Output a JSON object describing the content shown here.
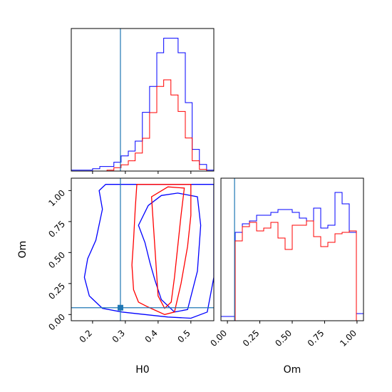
{
  "chart_data": {
    "type": "corner",
    "colors": {
      "series_a": "#0000ff",
      "series_b": "#ff0000",
      "truth": "#1f77b4"
    },
    "truth": {
      "H0": 0.285,
      "Om": 0.055
    },
    "panels": [
      {
        "id": "H0-histogram",
        "type": "step-histogram",
        "xlim": [
          0.135,
          0.57
        ],
        "ylim": [
          0,
          50
        ],
        "bin_edges": [
          0.135,
          0.157,
          0.178,
          0.2,
          0.222,
          0.244,
          0.265,
          0.287,
          0.309,
          0.33,
          0.352,
          0.374,
          0.396,
          0.417,
          0.439,
          0.461,
          0.483,
          0.504,
          0.526,
          0.548,
          0.57
        ],
        "series": [
          {
            "color_key": "series_a",
            "values": [
              0.3,
              0.3,
              0.3,
              0.8,
              1.6,
              1.6,
              3.1,
              5.3,
              7.0,
              10.5,
              20.6,
              29.7,
              41.5,
              46.6,
              46.6,
              41.5,
              24.0,
              7.6,
              2.3,
              0.3
            ]
          },
          {
            "color_key": "series_b",
            "values": [
              0,
              0,
              0,
              0,
              0,
              0.3,
              1.2,
              2.2,
              3.6,
              6.3,
              11.5,
              20.5,
              29.7,
              32.0,
              26.7,
              20.9,
              11.6,
              3.6,
              0.6,
              0
            ]
          }
        ],
        "x_ticks": [
          0.2,
          0.3,
          0.4,
          0.5
        ]
      },
      {
        "id": "Om-histogram",
        "type": "step-histogram",
        "xlim": [
          -0.05,
          1.05
        ],
        "ylim": [
          0,
          100
        ],
        "bin_edges": [
          -0.05,
          0.005,
          0.06,
          0.115,
          0.17,
          0.225,
          0.28,
          0.335,
          0.39,
          0.445,
          0.5,
          0.555,
          0.61,
          0.665,
          0.72,
          0.775,
          0.83,
          0.885,
          0.94,
          0.995,
          1.05
        ],
        "series": [
          {
            "color_key": "series_a",
            "values": [
              3,
              3,
              62,
              68,
              70,
              74,
              74,
              76,
              78,
              78,
              76,
              72,
              70,
              79,
              65,
              67,
              90,
              82,
              62,
              5
            ]
          },
          {
            "color_key": "series_b",
            "values": [
              0,
              0,
              56,
              66,
              69,
              63,
              65,
              69,
              58,
              50,
              67,
              67,
              70,
              59,
              52,
              55,
              61,
              62,
              63,
              0
            ]
          }
        ],
        "x_ticks": [
          0.0,
          0.25,
          0.5,
          0.75,
          1.0
        ]
      },
      {
        "id": "H0-Om-contours",
        "type": "contour",
        "xlim": [
          0.135,
          0.57
        ],
        "ylim": [
          -0.05,
          1.1
        ],
        "x_ticks": [
          0.2,
          0.3,
          0.4,
          0.5
        ],
        "y_ticks": [
          0.0,
          0.25,
          0.5,
          0.75,
          1.0
        ],
        "series": [
          {
            "color_key": "series_a",
            "levels": [
              [
                [
                  0.22,
                  1.0
                ],
                [
                  0.23,
                  0.85
                ],
                [
                  0.21,
                  0.6
                ],
                [
                  0.185,
                  0.45
                ],
                [
                  0.175,
                  0.3
                ],
                [
                  0.19,
                  0.15
                ],
                [
                  0.23,
                  0.05
                ],
                [
                  0.29,
                  0.02
                ],
                [
                  0.36,
                  0.0
                ],
                [
                  0.43,
                  -0.02
                ],
                [
                  0.5,
                  -0.03
                ],
                [
                  0.55,
                  0.02
                ],
                [
                  0.57,
                  0.3
                ],
                [
                  0.57,
                  0.6
                ],
                [
                  0.57,
                  1.05
                ],
                [
                  0.45,
                  1.05
                ],
                [
                  0.34,
                  1.05
                ],
                [
                  0.24,
                  1.05
                ]
              ],
              [
                [
                  0.34,
                  0.72
                ],
                [
                  0.36,
                  0.58
                ],
                [
                  0.375,
                  0.42
                ],
                [
                  0.39,
                  0.28
                ],
                [
                  0.41,
                  0.12
                ],
                [
                  0.45,
                  0.02
                ],
                [
                  0.49,
                  0.04
                ],
                [
                  0.52,
                  0.35
                ],
                [
                  0.53,
                  0.72
                ],
                [
                  0.52,
                  0.95
                ],
                [
                  0.46,
                  0.98
                ],
                [
                  0.41,
                  0.96
                ],
                [
                  0.37,
                  0.88
                ]
              ]
            ]
          },
          {
            "color_key": "series_b",
            "levels": [
              [
                [
                  0.335,
                  1.05
                ],
                [
                  0.33,
                  0.85
                ],
                [
                  0.325,
                  0.6
                ],
                [
                  0.32,
                  0.4
                ],
                [
                  0.325,
                  0.2
                ],
                [
                  0.34,
                  0.1
                ],
                [
                  0.37,
                  0.06
                ],
                [
                  0.42,
                  0.0
                ],
                [
                  0.45,
                  0.02
                ],
                [
                  0.47,
                  0.25
                ],
                [
                  0.49,
                  0.55
                ],
                [
                  0.5,
                  0.8
                ],
                [
                  0.5,
                  1.05
                ]
              ],
              [
                [
                  0.38,
                  0.95
                ],
                [
                  0.385,
                  0.75
                ],
                [
                  0.39,
                  0.55
                ],
                [
                  0.395,
                  0.35
                ],
                [
                  0.4,
                  0.15
                ],
                [
                  0.42,
                  0.05
                ],
                [
                  0.44,
                  0.1
                ],
                [
                  0.45,
                  0.3
                ],
                [
                  0.46,
                  0.55
                ],
                [
                  0.47,
                  0.8
                ],
                [
                  0.48,
                  1.02
                ],
                [
                  0.43,
                  1.03
                ]
              ]
            ]
          }
        ]
      }
    ],
    "xlabel_left": "H0",
    "xlabel_right": "Om",
    "ylabel": "Om",
    "tick_labels": {
      "H0": [
        "0.2",
        "0.3",
        "0.4",
        "0.5"
      ],
      "Om": [
        "0.00",
        "0.25",
        "0.50",
        "0.75",
        "1.00"
      ]
    }
  }
}
